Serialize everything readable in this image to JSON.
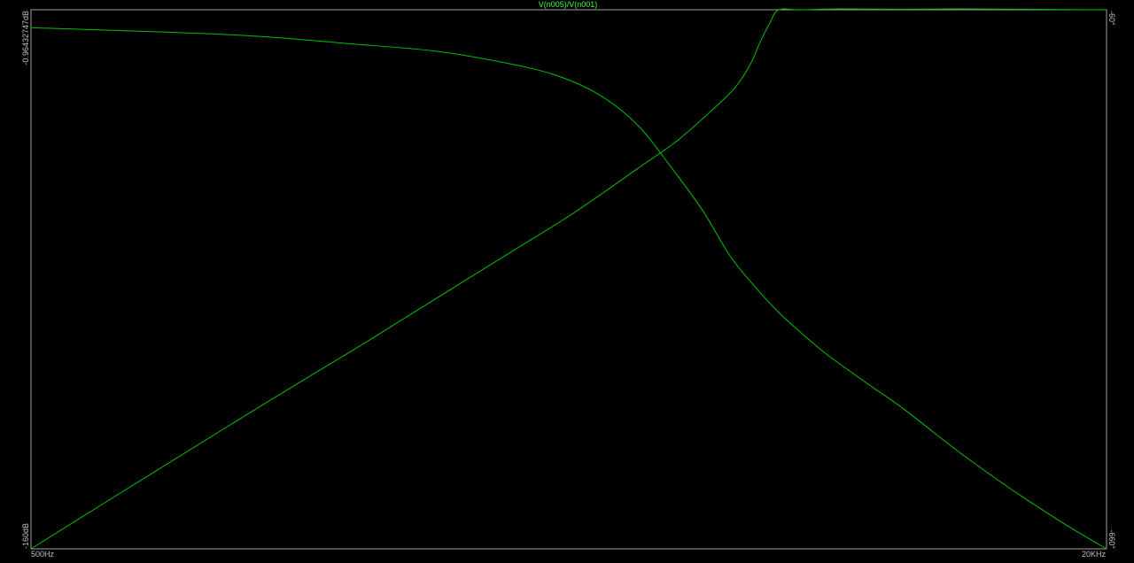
{
  "chart_data": {
    "type": "line",
    "title": "V(n005)/V(n001)",
    "x_axis": {
      "scale": "log",
      "range": [
        "500Hz",
        "20KHz"
      ],
      "tick_labels": [
        "500Hz",
        "20KHz"
      ],
      "x_hz": [
        500,
        20000
      ]
    },
    "y_left": {
      "label_top": "-0.96432747dB",
      "label_bottom": "-160dB",
      "range": [
        -160,
        -0.96432747
      ]
    },
    "y_right": {
      "label_top": "-60°",
      "label_bottom": "-660°",
      "range": [
        -660,
        -60
      ]
    },
    "grid": false,
    "series": [
      {
        "name": "magnitude",
        "axis": "left",
        "x_hz": [
          500,
          650,
          800,
          1000,
          1300,
          1600,
          2000,
          2600,
          3200,
          4000,
          4600,
          5200,
          5600,
          5900,
          6100,
          6300,
          6500,
          7000,
          8000,
          10000,
          12000,
          15000,
          20000
        ],
        "y_db": [
          -160,
          -145.9,
          -134.8,
          -122.9,
          -109.1,
          -98.3,
          -86.3,
          -72.3,
          -61.2,
          -47.9,
          -39.4,
          -30.1,
          -23.8,
          -16.9,
          -10.4,
          -4.9,
          -1.0,
          -1.0,
          -0.7,
          -0.8,
          -0.7,
          -0.8,
          -1.0
        ]
      },
      {
        "name": "phase",
        "axis": "right",
        "x_hz": [
          500,
          1000,
          1500,
          2000,
          2500,
          3000,
          3500,
          4000,
          4500,
          5000,
          5500,
          6000,
          6500,
          7000,
          7500,
          8000,
          9000,
          10000,
          12000,
          14000,
          16000,
          18000,
          20000
        ],
        "y_deg": [
          -80,
          -88,
          -98,
          -106,
          -118,
          -132,
          -154,
          -188,
          -236,
          -283,
          -334,
          -369,
          -397,
          -419,
          -438,
          -454,
          -481,
          -505,
          -551,
          -587,
          -616,
          -640,
          -660
        ]
      }
    ],
    "colors": {
      "background": "#000000",
      "trace": "#00c000",
      "title": "#40ff40",
      "axis": "#a0a0a0",
      "labels": "#c0c0c0"
    }
  }
}
